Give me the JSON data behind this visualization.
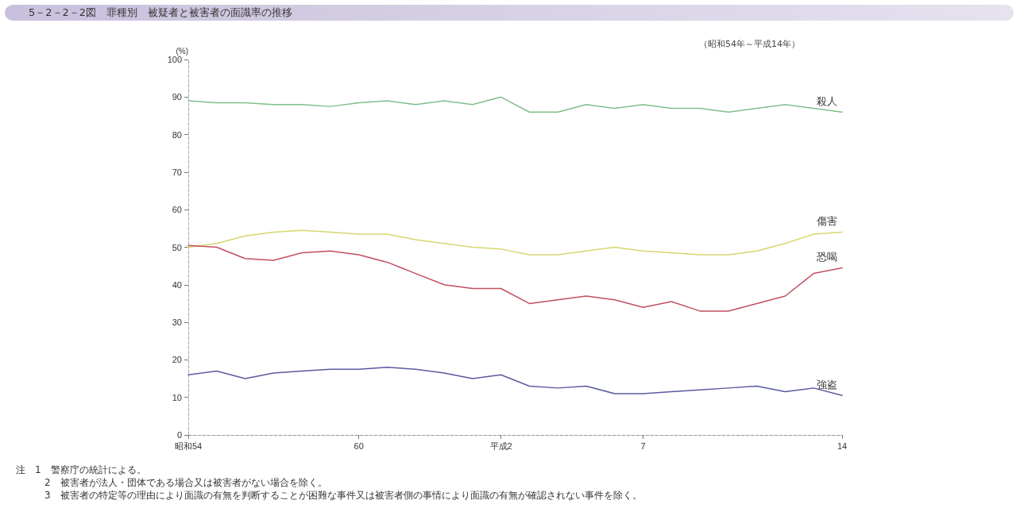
{
  "chart_data": {
    "type": "line",
    "title": "5－2－2－2図　罪種別　被疑者と被害者の面識率の推移",
    "subtitle": "（昭和54年～平成14年）",
    "ylabel": "(%)",
    "categories": [
      "昭和54",
      null,
      null,
      null,
      null,
      null,
      "60",
      null,
      null,
      null,
      null,
      "平成2",
      null,
      null,
      null,
      null,
      "7",
      null,
      null,
      null,
      null,
      null,
      null,
      "14"
    ],
    "series": [
      {
        "name": "殺人",
        "color": "#7fbf8a",
        "values": [
          89,
          88.5,
          88.5,
          88,
          88,
          87.5,
          88.5,
          89,
          88,
          89,
          88,
          90,
          86,
          86,
          88,
          87,
          88,
          87,
          87,
          86,
          87,
          88,
          87,
          86
        ]
      },
      {
        "name": "傷害",
        "color": "#d6d66e",
        "values": [
          50,
          51,
          53,
          54,
          54.5,
          54,
          53.5,
          53.5,
          52,
          51,
          50,
          49.5,
          48,
          48,
          49,
          50,
          49,
          48.5,
          48,
          48,
          49,
          51,
          53.5,
          54
        ]
      },
      {
        "name": "恐喝",
        "color": "#c05060",
        "values": [
          50.5,
          50,
          47,
          46.5,
          48.5,
          49,
          48,
          46,
          43,
          40,
          39,
          39,
          35,
          36,
          37,
          36,
          34,
          35.5,
          33,
          33,
          35,
          37,
          43,
          44.5
        ]
      },
      {
        "name": "強盗",
        "color": "#5a5aa0",
        "values": [
          16,
          17,
          15,
          16.5,
          17,
          17.5,
          17.5,
          18,
          17.5,
          16.5,
          15,
          16,
          13,
          12.5,
          13,
          11,
          11,
          11.5,
          12,
          12.5,
          13,
          11.5,
          12.5,
          10.5
        ]
      }
    ],
    "ylim": [
      0,
      100
    ],
    "yticks": [
      0,
      10,
      20,
      30,
      40,
      50,
      60,
      70,
      80,
      90,
      100
    ],
    "grid": false,
    "legend": false,
    "line_style": "solid",
    "annotations": [
      "注　1　警察庁の統計による。",
      "2　被害者が法人・団体である場合又は被害者がない場合を除く。",
      "3　被害者の特定等の理由により面識の有無を判断することが困難な事件又は被害者側の事情により面識の有無が確認されない事件を除く。"
    ]
  }
}
